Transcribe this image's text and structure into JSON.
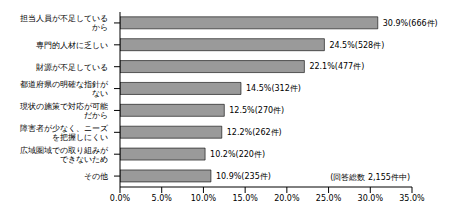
{
  "chart_data": {
    "type": "bar",
    "orientation": "horizontal",
    "categories": [
      "担当人員が不足しているから",
      "専門的人材に乏しい",
      "財源が不足している",
      "都道府県の明確な指針がない",
      "現状の施策で対応が可能だから",
      "障害者が少なく、ニーズを把握しにくい",
      "広域圏域での取り組みができないため",
      "その他"
    ],
    "values": [
      30.9,
      24.5,
      22.1,
      14.5,
      12.5,
      12.2,
      10.2,
      10.9
    ],
    "value_labels": [
      "30.9%(666件)",
      "24.5%(528件)",
      "22.1%(477件)",
      "14.5%(312件)",
      "12.5%(270件)",
      "12.2%(262件)",
      "10.2%(220件)",
      "10.9%(235件)"
    ],
    "data_labels": true,
    "color": "#9a9a9a",
    "xlim": [
      0,
      35
    ],
    "xticks": [
      {
        "value": 0,
        "label": "0.0%"
      },
      {
        "value": 5,
        "label": "5.0%"
      },
      {
        "value": 10,
        "label": "10.0%"
      },
      {
        "value": 15,
        "label": "15.0%"
      },
      {
        "value": 20,
        "label": "20.0%"
      },
      {
        "value": 25,
        "label": "25.0%"
      },
      {
        "value": 30,
        "label": "30.0%"
      },
      {
        "value": 35,
        "label": "35.0%"
      }
    ],
    "grid": false,
    "annotation": "(回答総数 2,155件中)"
  }
}
